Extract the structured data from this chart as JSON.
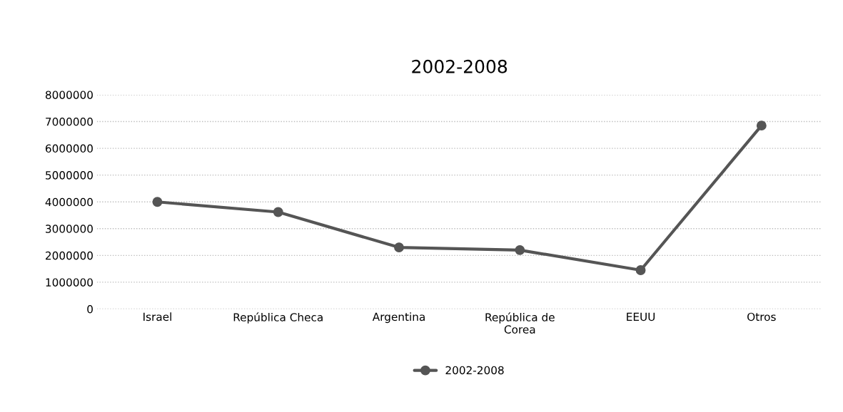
{
  "chart_data": {
    "type": "line",
    "title": "2002-2008",
    "categories": [
      "Israel",
      "República Checa",
      "Argentina",
      "República de\nCorea",
      "EEUU",
      "Otros"
    ],
    "series": [
      {
        "name": "2002-2008",
        "color": "#555555",
        "values": [
          4000000,
          3620000,
          2300000,
          2200000,
          1450000,
          6850000
        ]
      }
    ],
    "ylim": [
      0,
      8000000
    ],
    "yticks": [
      0,
      1000000,
      2000000,
      3000000,
      4000000,
      5000000,
      6000000,
      7000000,
      8000000
    ],
    "grid": "y",
    "legend": "bottom",
    "marker": "circle",
    "line_style": "solid"
  }
}
